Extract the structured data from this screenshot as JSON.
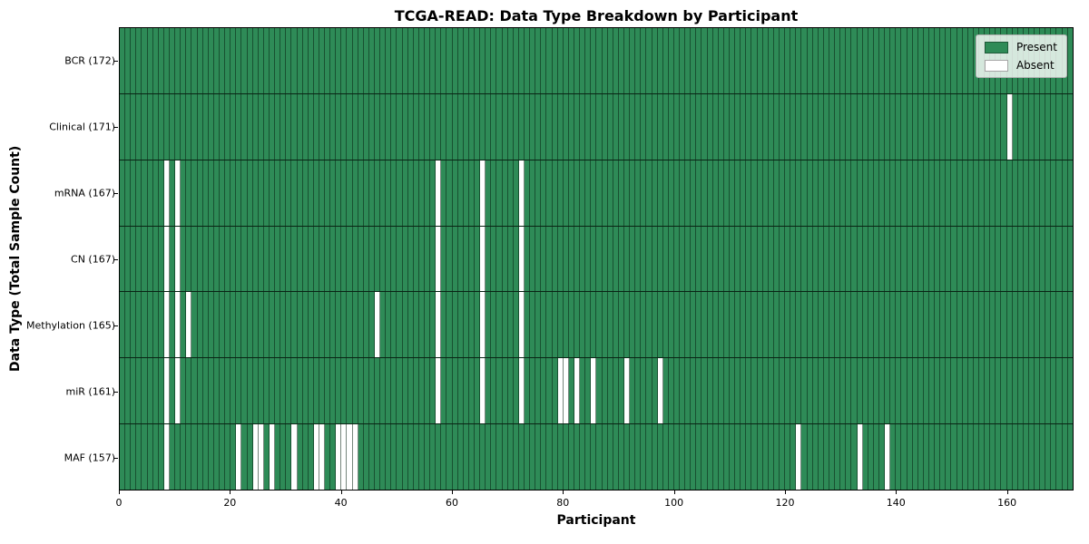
{
  "title": "TCGA-READ: Data Type Breakdown by Participant",
  "chart_data": {
    "type": "heatmap",
    "title": "TCGA-READ: Data Type Breakdown by Participant",
    "xlabel": "Participant",
    "ylabel": "Data Type (Total Sample Count)",
    "n_participants": 172,
    "xlim": [
      0,
      172
    ],
    "x_ticks": [
      0,
      20,
      40,
      60,
      80,
      100,
      120,
      140,
      160
    ],
    "grid": "cell-borders",
    "legend_position": "upper-right",
    "legend": [
      {
        "label": "Present",
        "color": "#2e8b57"
      },
      {
        "label": "Absent",
        "color": "#ffffff"
      }
    ],
    "colors": {
      "present": "#2e8b57",
      "absent": "#ffffff",
      "cell_border": "#1023166",
      "axis": "#000000"
    },
    "rows": [
      {
        "label": "BCR (172)",
        "data_type": "BCR",
        "present_count": 172,
        "absent_participants": []
      },
      {
        "label": "Clinical (171)",
        "data_type": "Clinical",
        "present_count": 171,
        "absent_participants": [
          160
        ]
      },
      {
        "label": "mRNA (167)",
        "data_type": "mRNA",
        "present_count": 167,
        "absent_participants": [
          8,
          10,
          57,
          65,
          72
        ]
      },
      {
        "label": "CN (167)",
        "data_type": "CN",
        "present_count": 167,
        "absent_participants": [
          8,
          10,
          57,
          65,
          72
        ]
      },
      {
        "label": "Methylation (165)",
        "data_type": "Methylation",
        "present_count": 165,
        "absent_participants": [
          8,
          10,
          12,
          46,
          57,
          65,
          72
        ]
      },
      {
        "label": "miR (161)",
        "data_type": "miR",
        "present_count": 161,
        "absent_participants": [
          8,
          10,
          57,
          65,
          72,
          79,
          80,
          82,
          85,
          91,
          97
        ]
      },
      {
        "label": "MAF (157)",
        "data_type": "MAF",
        "present_count": 157,
        "absent_participants": [
          8,
          21,
          24,
          25,
          27,
          31,
          35,
          36,
          39,
          40,
          41,
          42,
          122,
          133,
          138
        ]
      }
    ]
  }
}
